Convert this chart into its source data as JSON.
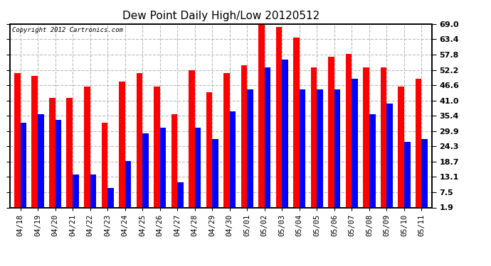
{
  "title": "Dew Point Daily High/Low 20120512",
  "copyright": "Copyright 2012 Cartronics.com",
  "dates": [
    "04/18",
    "04/19",
    "04/20",
    "04/21",
    "04/22",
    "04/23",
    "04/24",
    "04/25",
    "04/26",
    "04/27",
    "04/28",
    "04/29",
    "04/30",
    "05/01",
    "05/02",
    "05/03",
    "05/04",
    "05/05",
    "05/06",
    "05/07",
    "05/08",
    "05/09",
    "05/10",
    "05/11"
  ],
  "highs": [
    51,
    50,
    42,
    42,
    46,
    33,
    48,
    51,
    46,
    36,
    52,
    44,
    51,
    54,
    70,
    68,
    64,
    53,
    57,
    58,
    53,
    53,
    46,
    49
  ],
  "lows": [
    33,
    36,
    34,
    14,
    14,
    9,
    19,
    29,
    31,
    11,
    31,
    27,
    37,
    45,
    53,
    56,
    45,
    45,
    45,
    49,
    36,
    40,
    26,
    27
  ],
  "high_color": "#ff0000",
  "low_color": "#0000ff",
  "bg_color": "#ffffff",
  "plot_bg": "#ffffff",
  "grid_color": "#bbbbbb",
  "yticks": [
    1.9,
    7.5,
    13.1,
    18.7,
    24.3,
    29.9,
    35.4,
    41.0,
    46.6,
    52.2,
    57.8,
    63.4,
    69.0
  ],
  "ymin": 1.9,
  "ymax": 69.0,
  "bar_width": 0.35
}
